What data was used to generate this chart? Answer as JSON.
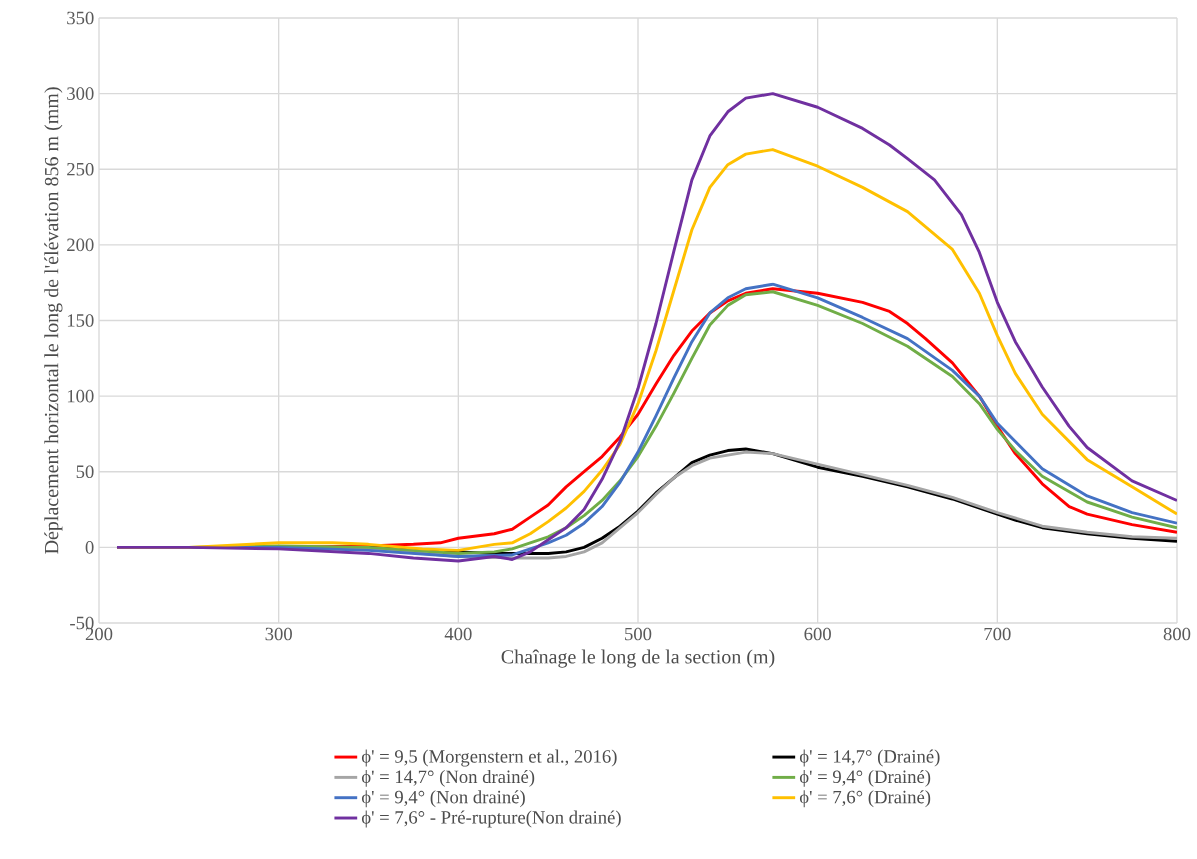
{
  "chart_data": {
    "type": "line",
    "xlabel": "Chaînage le long de la section (m)",
    "ylabel": "Déplacement horizontal le long de l'élévation 856 m (mm)",
    "xlim": [
      200,
      800
    ],
    "ylim": [
      -50,
      350
    ],
    "xticks": [
      200,
      300,
      400,
      500,
      600,
      700,
      800
    ],
    "yticks": [
      -50,
      0,
      50,
      100,
      150,
      200,
      250,
      300,
      350
    ],
    "grid": true,
    "legend": "bottom",
    "marker": "none",
    "line_style": "solid",
    "series": [
      {
        "name": "ϕ' = 9,5 (Morgenstern et al., 2016)",
        "color": "#ff0000",
        "x": [
          300,
          350,
          375,
          390,
          400,
          420,
          430,
          440,
          450,
          460,
          470,
          480,
          490,
          500,
          510,
          520,
          530,
          540,
          550,
          560,
          575,
          600,
          625,
          640,
          650,
          660,
          675,
          690,
          700,
          710,
          725,
          740,
          750,
          775,
          800
        ],
        "values": [
          0,
          1,
          2,
          3,
          6,
          9,
          12,
          20,
          28,
          40,
          50,
          60,
          73,
          88,
          108,
          127,
          143,
          155,
          163,
          168,
          171,
          168,
          162,
          156,
          148,
          138,
          122,
          100,
          80,
          62,
          42,
          27,
          22,
          15,
          10
        ]
      },
      {
        "name": "ϕ' = 14,7° (Drainé)",
        "color": "#000000",
        "x": [
          210,
          250,
          300,
          350,
          400,
          420,
          430,
          450,
          460,
          470,
          480,
          490,
          500,
          510,
          520,
          530,
          540,
          550,
          560,
          575,
          600,
          625,
          650,
          675,
          700,
          710,
          725,
          750,
          775,
          800
        ],
        "values": [
          0,
          0,
          0,
          0,
          -3,
          -4,
          -4,
          -4,
          -3,
          0,
          6,
          14,
          24,
          36,
          46,
          56,
          61,
          64,
          65,
          62,
          53,
          47,
          40,
          32,
          22,
          18,
          13,
          9,
          6,
          4
        ]
      },
      {
        "name": "ϕ' = 14,7° (Non drainé)",
        "color": "#a5a5a5",
        "x": [
          210,
          250,
          300,
          350,
          400,
          430,
          450,
          460,
          470,
          480,
          490,
          500,
          510,
          520,
          530,
          540,
          550,
          560,
          575,
          600,
          625,
          650,
          675,
          700,
          725,
          750,
          775,
          800
        ],
        "values": [
          0,
          0,
          0,
          -1,
          -6,
          -7,
          -7,
          -6,
          -3,
          3,
          13,
          23,
          35,
          46,
          54,
          59,
          61,
          63,
          62,
          55,
          48,
          41,
          33,
          23,
          14,
          10,
          7,
          6
        ]
      },
      {
        "name": "ϕ' = 9,4° (Drainé)",
        "color": "#70ad47",
        "x": [
          210,
          250,
          300,
          350,
          400,
          420,
          430,
          440,
          450,
          460,
          470,
          480,
          490,
          500,
          510,
          520,
          530,
          540,
          550,
          560,
          575,
          600,
          625,
          650,
          675,
          690,
          700,
          710,
          725,
          750,
          775,
          800
        ],
        "values": [
          0,
          0,
          1,
          0,
          -4,
          -3,
          -1,
          3,
          7,
          13,
          21,
          31,
          44,
          60,
          80,
          102,
          125,
          147,
          160,
          167,
          169,
          160,
          148,
          133,
          113,
          95,
          78,
          64,
          47,
          30,
          20,
          13
        ]
      },
      {
        "name": "ϕ' = 9,4° (Non drainé)",
        "color": "#4472c4",
        "x": [
          210,
          250,
          300,
          350,
          400,
          430,
          440,
          450,
          460,
          470,
          480,
          490,
          500,
          510,
          520,
          530,
          540,
          550,
          560,
          575,
          600,
          625,
          650,
          675,
          690,
          700,
          710,
          725,
          750,
          775,
          800
        ],
        "values": [
          0,
          0,
          0,
          -2,
          -6,
          -5,
          -1,
          3,
          8,
          16,
          27,
          43,
          63,
          87,
          112,
          136,
          155,
          165,
          171,
          174,
          165,
          152,
          138,
          117,
          100,
          82,
          70,
          52,
          34,
          23,
          16
        ]
      },
      {
        "name": "ϕ' = 7,6° (Drainé)",
        "color": "#ffc000",
        "x": [
          210,
          250,
          300,
          330,
          350,
          380,
          400,
          420,
          430,
          440,
          450,
          460,
          470,
          480,
          490,
          500,
          510,
          520,
          530,
          540,
          550,
          560,
          575,
          600,
          625,
          650,
          675,
          690,
          700,
          710,
          725,
          750,
          775,
          800
        ],
        "values": [
          0,
          0,
          3,
          3,
          2,
          -1,
          -2,
          2,
          3,
          9,
          17,
          26,
          37,
          51,
          68,
          95,
          130,
          170,
          210,
          238,
          253,
          260,
          263,
          252,
          238,
          222,
          197,
          168,
          140,
          115,
          88,
          58,
          40,
          22
        ]
      },
      {
        "name": "ϕ' = 7,6° - Pré-rupture(Non drainé)",
        "color": "#7030a0",
        "x": [
          210,
          250,
          300,
          350,
          375,
          400,
          420,
          430,
          440,
          450,
          460,
          470,
          480,
          490,
          500,
          510,
          520,
          530,
          540,
          550,
          560,
          575,
          600,
          625,
          640,
          650,
          665,
          680,
          690,
          700,
          710,
          725,
          740,
          750,
          775,
          800
        ],
        "values": [
          0,
          0,
          -1,
          -4,
          -7,
          -9,
          -6,
          -8,
          -3,
          5,
          13,
          25,
          45,
          70,
          105,
          148,
          196,
          243,
          272,
          288,
          297,
          300,
          291,
          277,
          266,
          257,
          243,
          220,
          195,
          162,
          136,
          106,
          80,
          66,
          44,
          31
        ]
      }
    ]
  }
}
